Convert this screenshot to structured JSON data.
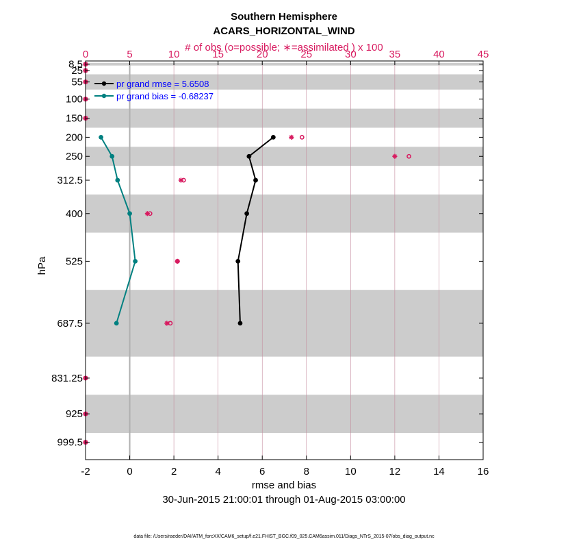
{
  "chart_data": {
    "type": "line",
    "title": "Southern Hemisphere",
    "subtitle": "ACARS_HORIZONTAL_WIND",
    "top_axis": {
      "label": "# of obs (o=possible; ∗=assimilated ) x 100",
      "ticks": [
        0,
        5,
        10,
        15,
        20,
        25,
        30,
        35,
        40,
        45
      ],
      "tick_labels": [
        "0",
        "5",
        "10",
        "15",
        "20",
        "25",
        "30",
        "35",
        "40",
        "45"
      ],
      "range": [
        0,
        45
      ]
    },
    "xlabel": "rmse and bias",
    "xlim": [
      -2,
      16
    ],
    "x_ticks": [
      -2,
      0,
      2,
      4,
      6,
      8,
      10,
      12,
      14,
      16
    ],
    "x_tick_labels": [
      "-2",
      "0",
      "2",
      "4",
      "6",
      "8",
      "10",
      "12",
      "14",
      "16"
    ],
    "ylabel": "hPa",
    "y_levels": [
      8.5,
      25,
      55,
      100,
      150,
      200,
      250,
      312.5,
      400,
      525,
      687.5,
      831.25,
      925,
      999.5
    ],
    "y_tick_labels": [
      "8.5",
      "25",
      "55",
      "100",
      "150",
      "200",
      "250",
      "312.5",
      "400",
      "525",
      "687.5",
      "831.25",
      "925",
      "999.5"
    ],
    "y_bands": [
      [
        5,
        12
      ],
      [
        35,
        75
      ],
      [
        125,
        175
      ],
      [
        225,
        275
      ],
      [
        350,
        450
      ],
      [
        600,
        775
      ],
      [
        875,
        975
      ]
    ],
    "series": [
      {
        "name": "pr grand rmse = 5.6508",
        "color": "#000000",
        "levels": [
          200,
          250,
          312.5,
          400,
          525,
          687.5
        ],
        "values": [
          6.5,
          5.4,
          5.7,
          5.3,
          4.9,
          5.0
        ]
      },
      {
        "name": "pr grand bias = -0.68237",
        "color": "#008080",
        "levels": [
          200,
          250,
          312.5,
          400,
          525,
          687.5
        ],
        "values": [
          -1.3,
          -0.8,
          -0.55,
          0.0,
          0.25,
          -0.6
        ]
      }
    ],
    "obs": {
      "color": "#d81b60",
      "levels": [
        8.5,
        25,
        55,
        100,
        150,
        200,
        250,
        312.5,
        400,
        525,
        687.5,
        831.25,
        925,
        999.5
      ],
      "possible": [
        0,
        0,
        0,
        0,
        0,
        24.5,
        36.6,
        11.1,
        7.3,
        10.4,
        9.6,
        0,
        0,
        0
      ],
      "assimilated": [
        0,
        0,
        0,
        0,
        0,
        23.3,
        35.0,
        10.8,
        7.0,
        10.4,
        9.2,
        0,
        0,
        0
      ]
    },
    "zero_line": 0,
    "legend_position": "top-left",
    "grid": "vertical",
    "date_range": "30-Jun-2015 21:00:01 through 01-Aug-2015 03:00:00",
    "footnote": "data file: /Users/raeder/DAI/ATM_forcXX/CAM6_setup/f.e21.FHIST_BGC.f09_025.CAM6assim.011/Diags_NTrS_2015-07/obs_diag_output.nc"
  },
  "colors": {
    "band": "#cccccc",
    "grid": "#c48a9c",
    "obs_axis": "#d81b60",
    "legend_text": "#0000ff",
    "zero_line": "#b0b0b0"
  }
}
